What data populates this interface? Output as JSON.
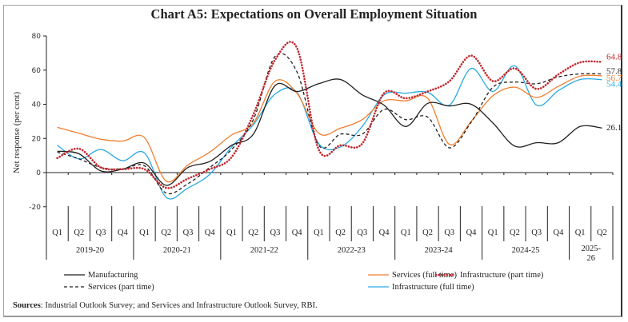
{
  "chart_data": {
    "type": "line",
    "title": "Chart A5: Expectations on Overall Employment Situation",
    "xlabel": "",
    "ylabel": "Net response (per cent)",
    "ylim": [
      -20,
      80
    ],
    "yticks": [
      80,
      60,
      40,
      20,
      0,
      -20
    ],
    "grid": false,
    "legend_position": "bottom",
    "quarters": [
      "Q1",
      "Q2",
      "Q3",
      "Q4",
      "Q1",
      "Q2",
      "Q3",
      "Q4",
      "Q1",
      "Q2",
      "Q3",
      "Q4",
      "Q1",
      "Q2",
      "Q3",
      "Q4",
      "Q1",
      "Q2",
      "Q3",
      "Q4",
      "Q1",
      "Q2",
      "Q3",
      "Q4",
      "Q1",
      "Q2"
    ],
    "years": [
      {
        "label": "2019-20",
        "quarters": 4
      },
      {
        "label": "2020-21",
        "quarters": 4
      },
      {
        "label": "2021-22",
        "quarters": 4
      },
      {
        "label": "2022-23",
        "quarters": 4
      },
      {
        "label": "2023-24",
        "quarters": 4
      },
      {
        "label": "2024-25",
        "quarters": 4
      },
      {
        "label": "2025-26",
        "label_lines": [
          "2025-",
          "26"
        ],
        "quarters": 2
      }
    ],
    "series": [
      {
        "name": "Manufacturing",
        "color": "#231f20",
        "style": "solid",
        "values": [
          12.5,
          11,
          1,
          2,
          5.5,
          -7.5,
          3,
          6.5,
          16,
          22.5,
          51,
          47.5,
          52,
          54.5,
          45.5,
          39.5,
          27,
          40.5,
          39,
          40,
          29,
          15.5,
          17.5,
          17.5,
          27,
          26.1
        ],
        "end_label": "26.1"
      },
      {
        "name": "Services (full time)",
        "color": "#f07f2f",
        "style": "solid",
        "values": [
          26.5,
          23,
          19.5,
          18.5,
          20.5,
          -5,
          4.5,
          12,
          22,
          29,
          53.5,
          46.5,
          23,
          26,
          31,
          42,
          42,
          43.5,
          16.5,
          30,
          45,
          50,
          44,
          50.5,
          56.5,
          56.7
        ],
        "end_label": "56.7"
      },
      {
        "name": "Infrastructure (part time)",
        "color": "#c0272d",
        "style": "dotted",
        "values": [
          8.5,
          14,
          3,
          2,
          2,
          -9,
          -3.5,
          2,
          9,
          34,
          66,
          73,
          13.5,
          16,
          17,
          46.5,
          43.5,
          47.5,
          53.5,
          68.5,
          53.5,
          61,
          49,
          57.5,
          64.5,
          64.8
        ],
        "end_label": "64.8"
      },
      {
        "name": "Services (part time)",
        "color": "#231f20",
        "style": "dashed",
        "values": [
          12,
          8,
          3,
          2,
          4,
          -12,
          -6.5,
          3,
          13.5,
          31,
          68,
          59,
          16,
          22.5,
          22.5,
          37,
          31,
          32.5,
          14.5,
          29.5,
          50,
          53,
          52,
          56,
          57.8,
          57.8
        ],
        "end_label": "57.8"
      },
      {
        "name": "Infrastructure (full time)",
        "color": "#29aae1",
        "style": "solid",
        "values": [
          16,
          8,
          13.5,
          7,
          11.5,
          -14.5,
          -9,
          -1,
          15,
          28,
          46,
          47,
          17,
          15,
          27,
          45.5,
          46.5,
          47,
          39.5,
          61,
          47.5,
          62.5,
          39.5,
          48,
          54.5,
          54.4
        ],
        "end_label": "54.4"
      }
    ]
  },
  "legend": [
    {
      "label": "Manufacturing",
      "series": 0
    },
    {
      "label": "Services (full time)",
      "series": 1
    },
    {
      "label": "Infrastructure (part time)",
      "series": 2
    },
    {
      "label": "Services (part time)",
      "series": 3
    },
    {
      "label": "Infrastructure (full time)",
      "series": 4
    }
  ],
  "footer": {
    "sources_label": "Sources",
    "sources_text": ": Industrial Outlook Survey; and Services and Infrastructure Outlook Survey, RBI."
  }
}
